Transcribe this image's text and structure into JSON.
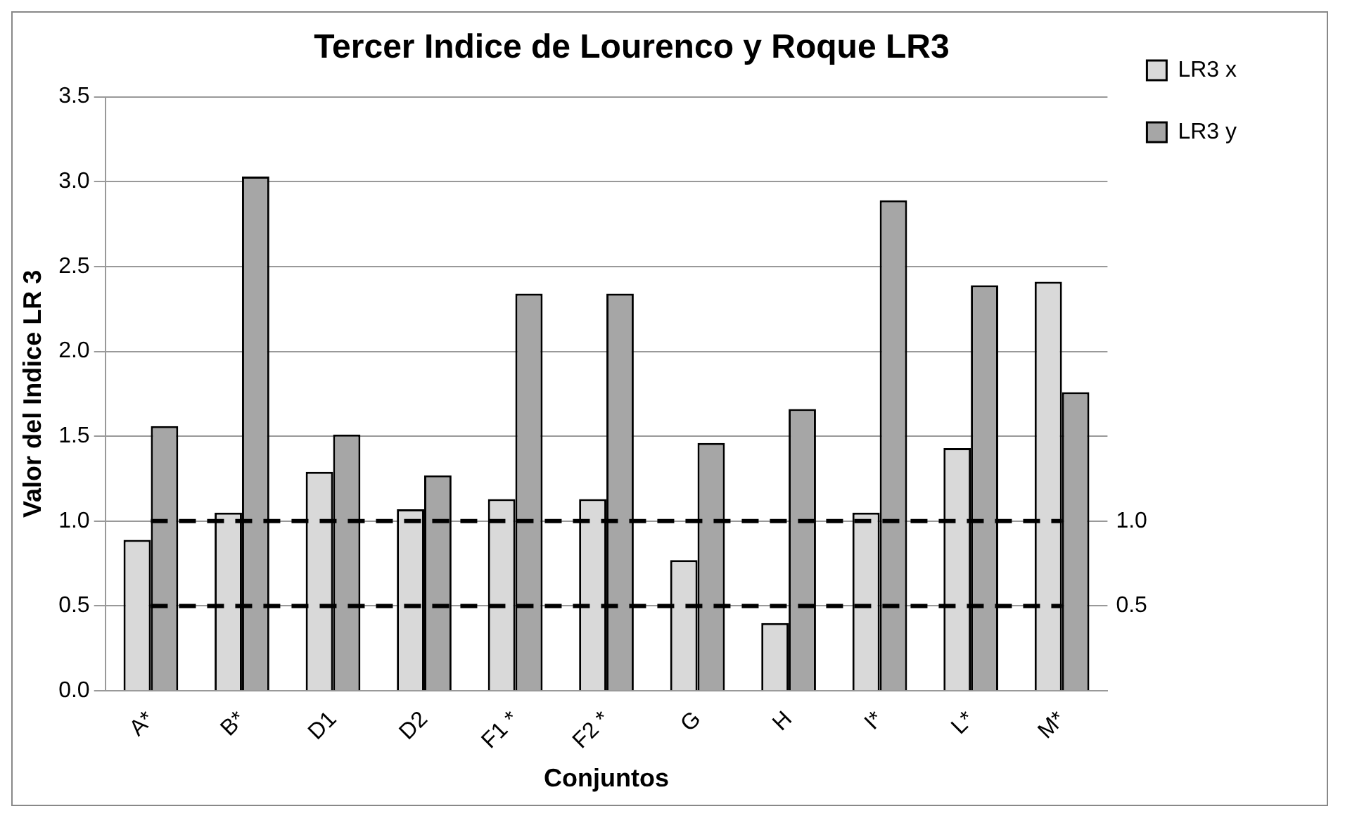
{
  "chart_data": {
    "type": "bar",
    "title": "Tercer Indice de Lourenco y Roque LR3",
    "xlabel": "Conjuntos",
    "ylabel": "Valor del Indice LR 3",
    "categories": [
      "A*",
      "B*",
      "D1",
      "D2",
      "F1 *",
      "F2 *",
      "G",
      "H",
      "I*",
      "L*",
      "M*"
    ],
    "series": [
      {
        "name": "LR3 x",
        "color": "#d9d9d9",
        "values": [
          0.89,
          1.05,
          1.29,
          1.07,
          1.13,
          1.13,
          0.77,
          0.4,
          1.05,
          1.43,
          2.41
        ]
      },
      {
        "name": "LR3 y",
        "color": "#a6a6a6",
        "values": [
          1.56,
          3.03,
          1.51,
          1.27,
          2.34,
          2.34,
          1.46,
          1.66,
          2.89,
          2.39,
          1.76
        ]
      }
    ],
    "ylim": [
      0,
      3.5
    ],
    "yticks": [
      {
        "value": 0,
        "label": "0.0"
      },
      {
        "value": 0.5,
        "label": "0.5"
      },
      {
        "value": 1,
        "label": "1.0"
      },
      {
        "value": 1.5,
        "label": "1.5"
      },
      {
        "value": 2,
        "label": "2.0"
      },
      {
        "value": 2.5,
        "label": "2.5"
      },
      {
        "value": 3,
        "label": "3.0"
      },
      {
        "value": 3.5,
        "label": "3.5"
      }
    ],
    "ref_lines": [
      {
        "axis": "y",
        "value": 1,
        "label": "1.0",
        "color": "#000000",
        "line_style": "dashed"
      },
      {
        "axis": "y",
        "value": 0.5,
        "label": "0.5",
        "color": "#000000",
        "line_style": "dashed"
      }
    ],
    "grid": "y",
    "legend": "right"
  }
}
